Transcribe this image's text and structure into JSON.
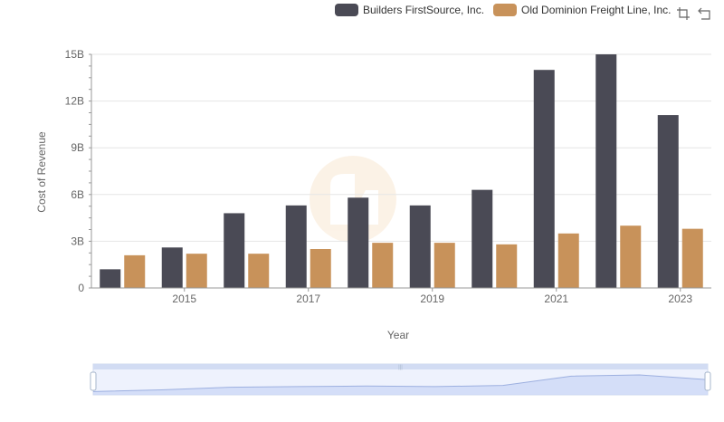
{
  "legend": [
    {
      "name": "Builders FirstSource, Inc.",
      "color": "#4a4a55"
    },
    {
      "name": "Old Dominion Freight Line, Inc.",
      "color": "#c8925a"
    }
  ],
  "toolbar": {
    "icons": [
      "restore-zoom-icon",
      "back-icon"
    ]
  },
  "chart_data": {
    "type": "bar",
    "xlabel": "Year",
    "ylabel": "Cost of Revenue",
    "x": [
      2014,
      2015,
      2016,
      2017,
      2018,
      2019,
      2020,
      2021,
      2022,
      2023
    ],
    "x_tick_labels": [
      "2015",
      "2017",
      "2019",
      "2021",
      "2023"
    ],
    "y_tick_labels": [
      "0",
      "3B",
      "6B",
      "9B",
      "12B",
      "15B"
    ],
    "ylim": [
      0,
      15
    ],
    "y_unit": "billions",
    "grid": true,
    "legend_position": "top-right",
    "series": [
      {
        "name": "Builders FirstSource, Inc.",
        "color": "#4a4a55",
        "values": [
          1.2,
          2.6,
          4.8,
          5.3,
          5.8,
          5.3,
          6.3,
          14.0,
          15.0,
          11.1
        ]
      },
      {
        "name": "Old Dominion Freight Line, Inc.",
        "color": "#c8925a",
        "values": [
          2.1,
          2.2,
          2.2,
          2.5,
          2.9,
          2.9,
          2.8,
          3.5,
          4.0,
          3.8
        ]
      }
    ],
    "zoom_slider": {
      "start": 0,
      "end": 100
    }
  }
}
